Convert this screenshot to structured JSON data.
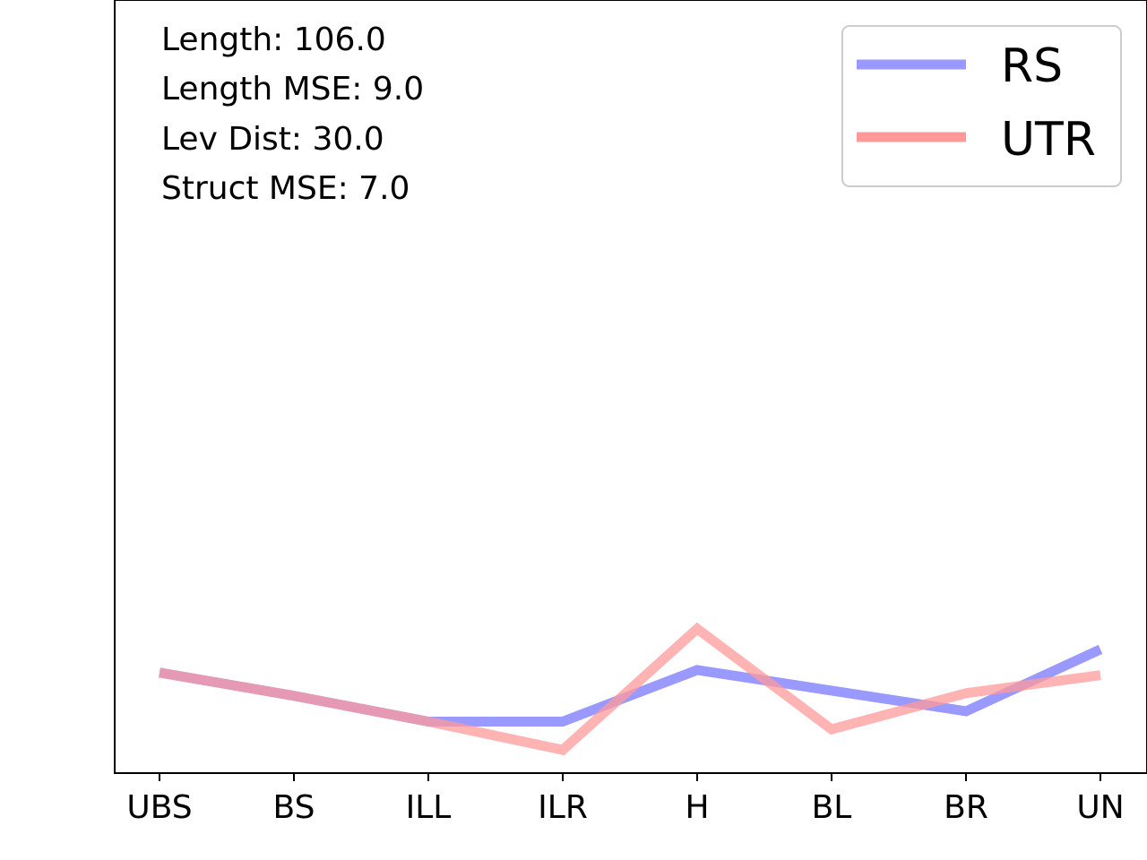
{
  "chart_data": {
    "type": "line",
    "categories": [
      "UBS",
      "BS",
      "ILL",
      "ILR",
      "H",
      "BL",
      "BR",
      "UN"
    ],
    "series": [
      {
        "name": "RS",
        "color": "#9999ff",
        "values": [
          3.9,
          3.0,
          2.0,
          2.0,
          4.0,
          3.2,
          2.4,
          4.8
        ]
      },
      {
        "name": "UTR",
        "color": "#ff9999",
        "values": [
          3.9,
          3.0,
          2.0,
          0.9,
          5.6,
          1.7,
          3.1,
          3.8
        ]
      }
    ],
    "ylim": [
      0,
      30
    ],
    "annotations": [
      "Length: 106.0",
      "Length MSE: 9.0",
      "Lev Dist: 30.0",
      "Struct MSE: 7.0"
    ],
    "legend": {
      "position": "top-right"
    },
    "grid": false
  }
}
